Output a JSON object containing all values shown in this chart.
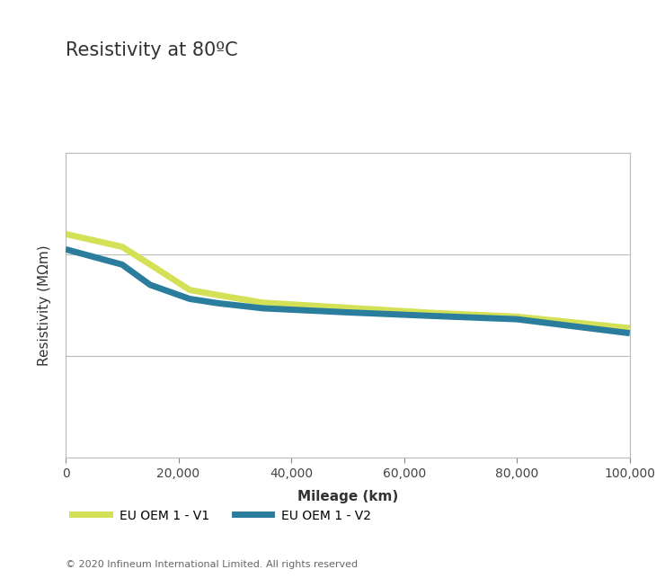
{
  "title": "Resistivity at 80ºC",
  "xlabel": "Mileage (km)",
  "ylabel": "Resistivity (MΩm)",
  "copyright": "© 2020 Infineum International Limited. All rights reserved",
  "xlim": [
    0,
    100000
  ],
  "ylim": [
    0,
    1200
  ],
  "yticks": [
    0,
    400,
    800,
    1200
  ],
  "xticks": [
    0,
    20000,
    40000,
    60000,
    80000,
    100000
  ],
  "xtick_labels": [
    "0",
    "20,000",
    "40,000",
    "60,000",
    "80,000",
    "100,000"
  ],
  "v1_x": [
    0,
    10000,
    15000,
    22000,
    27000,
    35000,
    50000,
    65000,
    80000,
    100000
  ],
  "v1_y": [
    880,
    830,
    760,
    660,
    640,
    610,
    590,
    570,
    555,
    510
  ],
  "v2_x": [
    0,
    10000,
    15000,
    22000,
    27000,
    35000,
    50000,
    65000,
    80000,
    100000
  ],
  "v2_y": [
    820,
    760,
    680,
    625,
    608,
    588,
    572,
    558,
    545,
    490
  ],
  "v1_color": "#d4e157",
  "v2_color": "#2a7d9c",
  "v1_label": "EU OEM 1 - V1",
  "v2_label": "EU OEM 1 - V2",
  "line_width": 5,
  "background_color": "#ffffff",
  "grid_color": "#bbbbbb",
  "title_fontsize": 15,
  "axis_label_fontsize": 11,
  "tick_fontsize": 10,
  "legend_fontsize": 10,
  "copyright_fontsize": 8
}
